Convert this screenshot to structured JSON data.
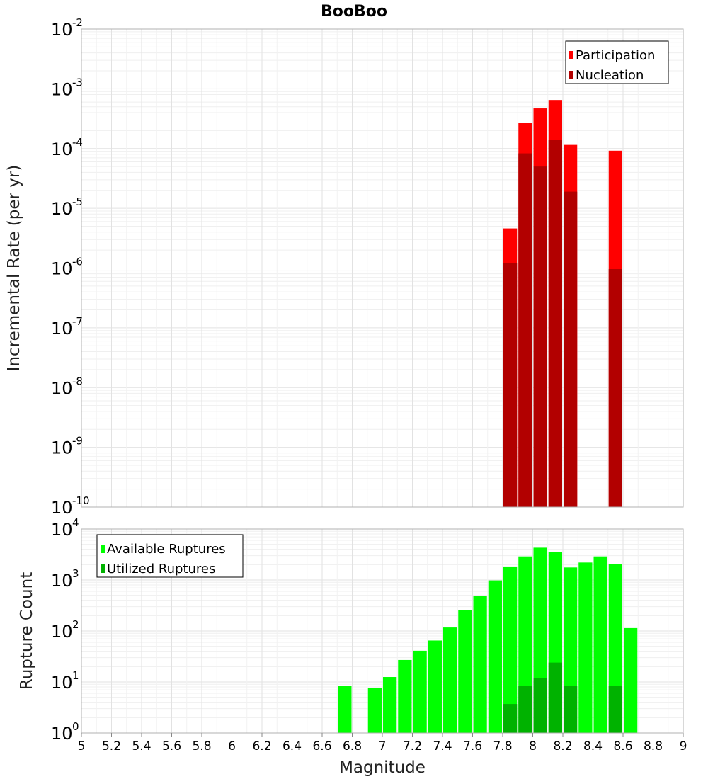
{
  "title": "BooBoo",
  "chart_data": [
    {
      "type": "bar",
      "ylabel": "Incremental Rate (per yr)",
      "yscale": "log",
      "ylim": [
        1e-10,
        0.01
      ],
      "xlim": [
        5,
        9
      ],
      "bar_width": 0.1,
      "grid": true,
      "legend_placement": "top-right",
      "series": [
        {
          "name": "Participation",
          "color": "#ff0000",
          "x": [
            7.85,
            7.95,
            8.05,
            8.15,
            8.25,
            8.55
          ],
          "values": [
            4.6e-06,
            0.00027,
            0.00047,
            0.00065,
            0.000115,
            9.2e-05
          ]
        },
        {
          "name": "Nucleation",
          "color": "#b20000",
          "x": [
            7.85,
            7.95,
            8.05,
            8.15,
            8.25,
            8.55
          ],
          "values": [
            1.2e-06,
            8.3e-05,
            5e-05,
            0.00014,
            1.9e-05,
            9.6e-07
          ]
        }
      ]
    },
    {
      "type": "bar",
      "xlabel": "Magnitude",
      "ylabel": "Rupture Count",
      "yscale": "log",
      "ylim": [
        1,
        10000
      ],
      "xlim": [
        5,
        9
      ],
      "bar_width": 0.1,
      "grid": true,
      "legend_placement": "top-left",
      "series": [
        {
          "name": "Available Ruptures",
          "color": "#00ff00",
          "x": [
            6.75,
            6.95,
            7.05,
            7.15,
            7.25,
            7.35,
            7.45,
            7.55,
            7.65,
            7.75,
            7.85,
            7.95,
            8.05,
            8.15,
            8.25,
            8.35,
            8.45,
            8.55,
            8.65
          ],
          "values": [
            8.5,
            7.5,
            12.5,
            27,
            41,
            65,
            117,
            260,
            490,
            980,
            1840,
            2900,
            4300,
            3500,
            1760,
            2200,
            2900,
            2050,
            114
          ]
        },
        {
          "name": "Utilized Ruptures",
          "color": "#00b200",
          "x": [
            7.85,
            7.95,
            8.05,
            8.15,
            8.25,
            8.55
          ],
          "values": [
            3.7,
            8.3,
            11.8,
            24,
            8.3,
            8.3
          ]
        }
      ],
      "x_ticks": [
        "5",
        "5.2",
        "5.4",
        "5.6",
        "5.8",
        "6",
        "6.2",
        "6.4",
        "6.6",
        "6.8",
        "7",
        "7.2",
        "7.4",
        "7.6",
        "7.8",
        "8",
        "8.2",
        "8.4",
        "8.6",
        "8.8",
        "9"
      ]
    }
  ]
}
